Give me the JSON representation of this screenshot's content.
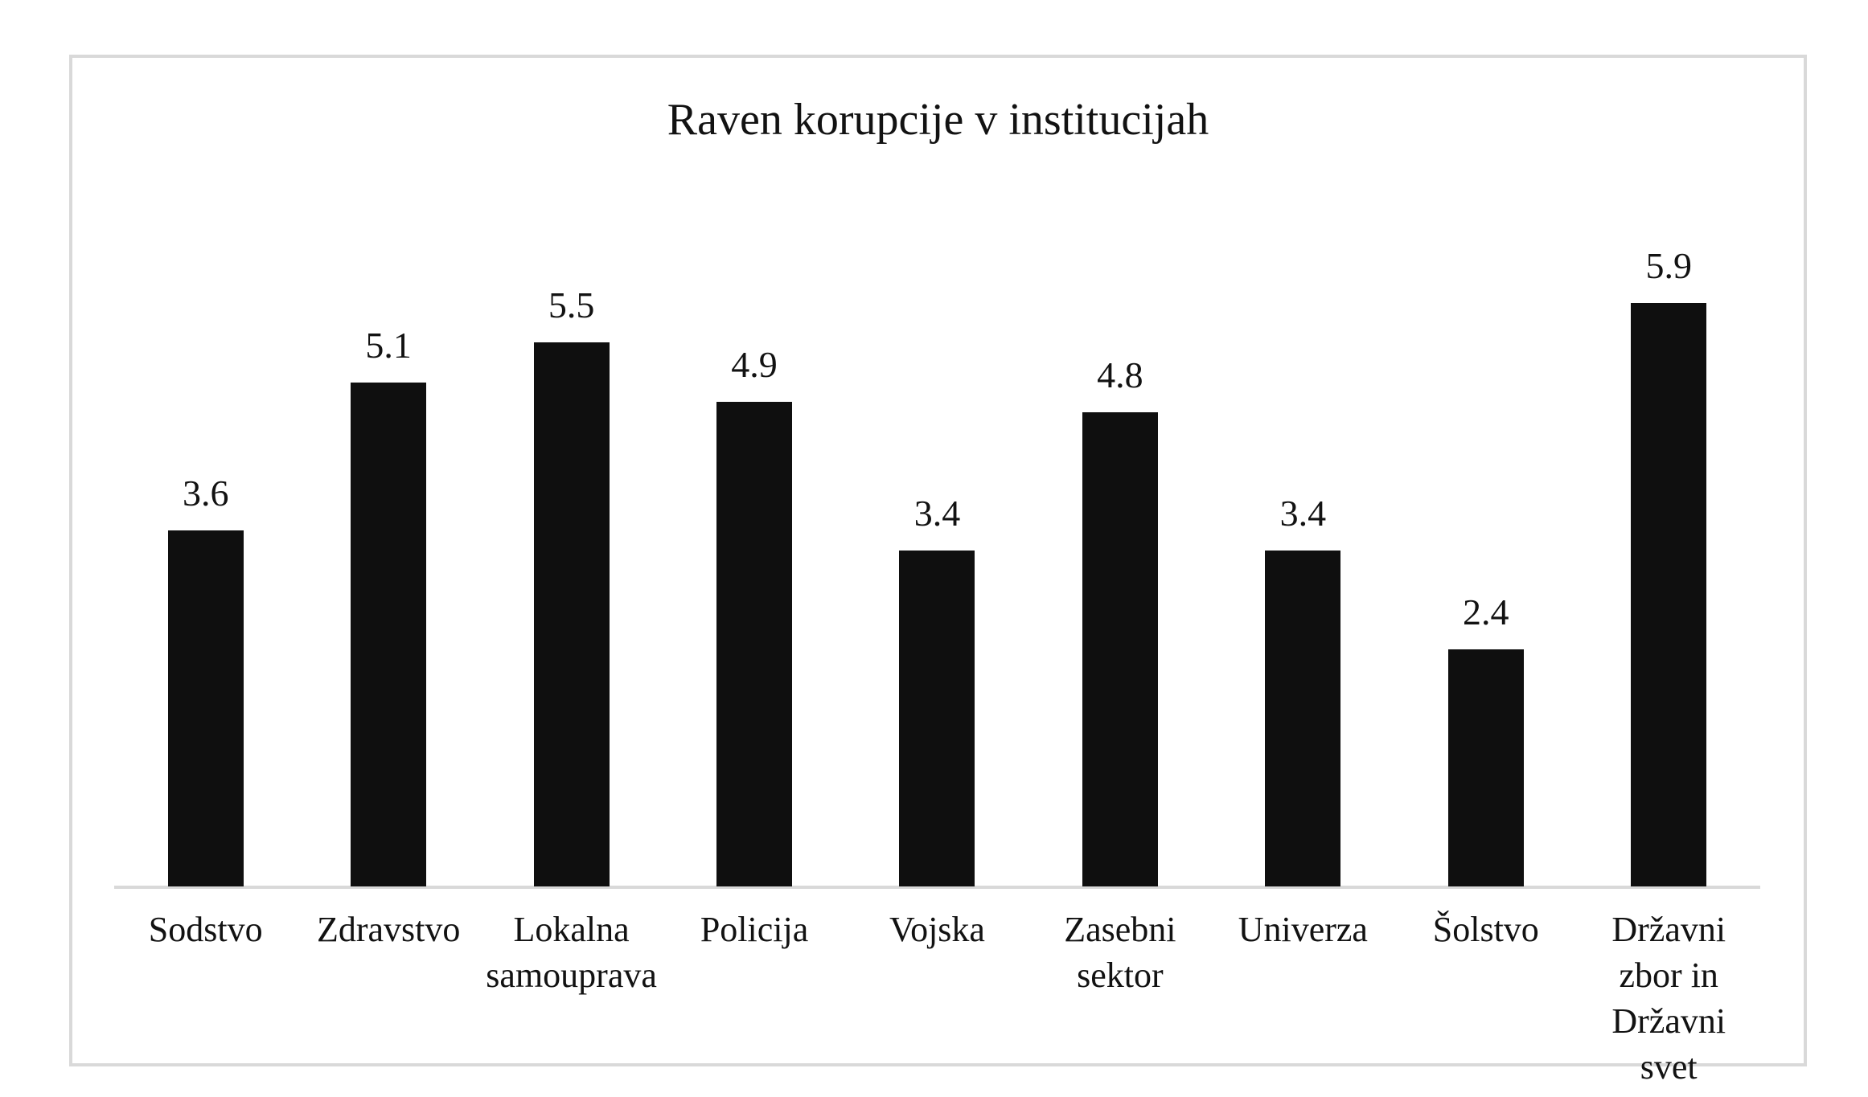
{
  "chart_data": {
    "type": "bar",
    "title": "Raven korupcije v institucijah",
    "categories": [
      "Sodstvo",
      "Zdravstvo",
      "Lokalna samouprava",
      "Policija",
      "Vojska",
      "Zasebni sektor",
      "Univerza",
      "Šolstvo",
      "Državni zbor in Državni svet"
    ],
    "values": [
      3.6,
      5.1,
      5.5,
      4.9,
      3.4,
      4.8,
      3.4,
      2.4,
      5.9
    ],
    "value_labels": [
      "3.6",
      "5.1",
      "5.5",
      "4.9",
      "3.4",
      "4.8",
      "3.4",
      "2.4",
      "5.9"
    ],
    "xlabel": "",
    "ylabel": "",
    "ylim": [
      0,
      7
    ],
    "grid": false,
    "legend": false,
    "data_labels": true,
    "colors": {
      "bar": "#0f0f0f",
      "text": "#121212",
      "axis_line": "#d9d9d9",
      "panel_border": "#d9d9d9",
      "background": "#ffffff"
    }
  }
}
